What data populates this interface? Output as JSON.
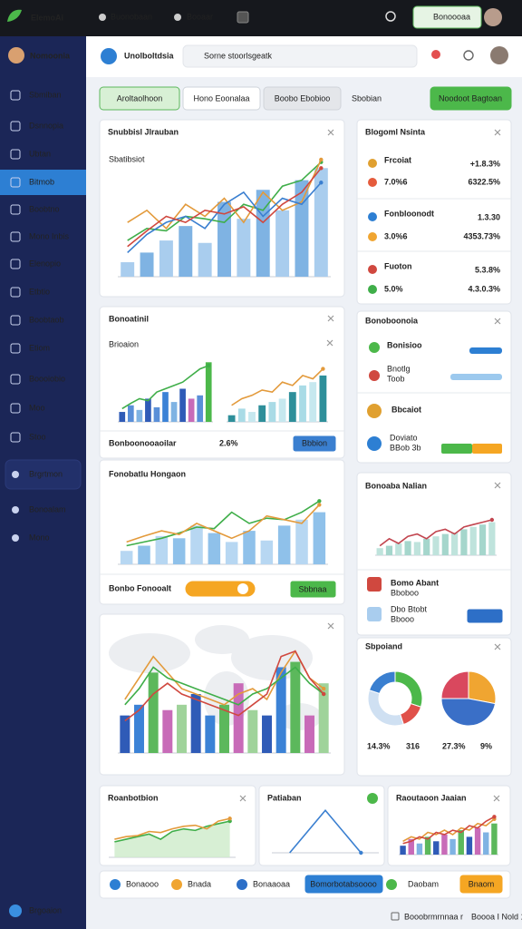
{
  "topbar": {
    "brand": "ElemoAi",
    "nav": [
      "Buonobaan",
      "Booaar"
    ],
    "button": "Bonoooaa"
  },
  "sidebar": {
    "user": "Nomoonia",
    "menu": [
      "Sbmiban",
      "Dsnnopia",
      "Ubtan",
      "Bitmob",
      "Boobtno",
      "Mono Inbis",
      "Elenopio",
      "Etbtio",
      "Boobtaob",
      "Etiom",
      "Boooiobio",
      "Moo",
      "Stoo"
    ],
    "active": 3,
    "menu2": [
      "Brgrtmon",
      "Bonoalam",
      "Mono"
    ],
    "footer": "Brgoaion"
  },
  "header": {
    "title": "Unolboltdsia",
    "search": "Sorne stoorlsgeatk"
  },
  "tabs": [
    "Aroltaolhoon",
    "Hono Eoonalaa",
    "Boobo Ebobioo",
    "Sbobian"
  ],
  "action": "Noodoot Bagtoan",
  "left": [
    {
      "title": "Snubbisl Jlrauban",
      "sub": "Sbatibsiot",
      "chart": {
        "ylim": [
          0,
          100
        ],
        "bars": [
          12,
          20,
          30,
          42,
          28,
          62,
          48,
          72,
          55,
          80,
          90
        ],
        "bar_colors": [
          "#a9cdee",
          "#7fb3e3"
        ],
        "lines": [
          {
            "color": "#3fae49",
            "values": [
              30,
              40,
              38,
              50,
              48,
              45,
              60,
              55,
              75,
              80,
              95
            ]
          },
          {
            "color": "#e39a3b",
            "values": [
              45,
              55,
              40,
              60,
              50,
              65,
              45,
              70,
              55,
              62,
              97
            ]
          },
          {
            "color": "#3a7fd0",
            "values": [
              20,
              35,
              45,
              50,
              40,
              60,
              70,
              50,
              65,
              60,
              78
            ]
          },
          {
            "color": "#d0483f",
            "values": [
              25,
              38,
              50,
              45,
              55,
              52,
              58,
              45,
              60,
              70,
              90
            ]
          }
        ]
      }
    },
    {
      "title": "Bonoatinil",
      "sub": "Brioaion",
      "chart": {
        "ylim": [
          0,
          100
        ],
        "bars": [
          15,
          25,
          18,
          35,
          22,
          45,
          30,
          50,
          35,
          40,
          90
        ],
        "bar_colors": [
          "#2f5bb7",
          "#5a8fd8",
          "#7fb3e3",
          "#2f5bb7",
          "#5a8fd8",
          "#3b82d6",
          "#7fb3e3",
          "#2f5bb7",
          "#c86bb8",
          "#5a8fd8",
          "#4cb84a"
        ],
        "lines": [
          {
            "color": "#3fae49",
            "values": [
              20,
              28,
              35,
              32,
              45,
              50,
              55,
              60,
              70,
              80,
              85
            ]
          }
        ]
      },
      "chart2": {
        "ylim": [
          0,
          100
        ],
        "bars": [
          10,
          20,
          15,
          25,
          30,
          35,
          45,
          55,
          60,
          70
        ],
        "bar_colors": [
          "#2e8f9a",
          "#a9dbe6",
          "#c6e8ef"
        ],
        "lines": [
          {
            "color": "#e39a3b",
            "values": [
              25,
              35,
              40,
              48,
              45,
              60,
              55,
              70,
              65,
              80
            ]
          }
        ]
      },
      "footer": "Bonboonooaoilar",
      "stat": "2.6%",
      "button": "Bbbion"
    },
    {
      "title": "Fonobatlu Hongaon",
      "chart": {
        "ylim": [
          0,
          100
        ],
        "bars": [
          18,
          25,
          38,
          35,
          52,
          42,
          30,
          45,
          32,
          52,
          60,
          70
        ],
        "bar_colors": [
          "#b7d7f2",
          "#8fc1ea"
        ],
        "lines": [
          {
            "color": "#3fae49",
            "values": [
              25,
              30,
              35,
              42,
              50,
              48,
              70,
              55,
              62,
              60,
              70,
              85
            ]
          },
          {
            "color": "#e39a3b",
            "values": [
              30,
              38,
              45,
              40,
              55,
              45,
              35,
              45,
              65,
              60,
              55,
              80
            ]
          }
        ]
      },
      "footer": "Bonbo Fonooalt",
      "button": "Sbbnaa"
    },
    {
      "chart": {
        "ylim": [
          0,
          110
        ],
        "bars": [
          35,
          45,
          75,
          40,
          45,
          55,
          35,
          45,
          65,
          40,
          35,
          80,
          85,
          35,
          65
        ],
        "bar_colors": [
          "#2f5bb7",
          "#3b82d6",
          "#5cb85c",
          "#c86bb8",
          "#9fd39a"
        ],
        "lines": [
          {
            "color": "#e39a3b",
            "values": [
              50,
              70,
              90,
              75,
              60,
              55,
              50,
              45,
              55,
              60,
              50,
              75,
              95,
              70,
              60
            ]
          },
          {
            "color": "#3fae49",
            "values": [
              45,
              60,
              80,
              70,
              65,
              60,
              55,
              50,
              45,
              55,
              60,
              70,
              80,
              65,
              55
            ]
          },
          {
            "color": "#d0483f",
            "values": [
              30,
              40,
              55,
              65,
              55,
              50,
              45,
              40,
              35,
              45,
              55,
              90,
              95,
              70,
              55
            ]
          }
        ]
      }
    }
  ],
  "right": [
    {
      "title": "Blogoml Nsinta",
      "rows": [
        [
          "Frcoiat",
          "+1.8.3%",
          "7.0%6",
          "6322.5%"
        ],
        [
          "Fonbloonodt",
          "1.3.30",
          "3.0%6",
          "4353.73%"
        ],
        [
          "Fuoton",
          "5.3.8%",
          "5.0%",
          "4.3.0.3%"
        ]
      ]
    },
    {
      "title": "Bonoboonoia",
      "items": [
        "Bonisioo",
        "Bnotlg",
        "Toob",
        "Bbcaiot",
        "Doviato",
        "BBob 3b"
      ]
    },
    {
      "title": "Bonoaba Nalian",
      "chart": {
        "ylim": [
          0,
          100
        ],
        "bars": [
          15,
          20,
          25,
          30,
          28,
          35,
          40,
          45,
          48,
          55,
          60,
          65,
          70
        ],
        "bar_colors": [
          "#bfe3dc",
          "#a5d6cc"
        ],
        "lines": [
          {
            "color": "#c2454f",
            "values": [
              20,
              35,
              25,
              40,
              45,
              35,
              50,
              55,
              45,
              60,
              65,
              70,
              75
            ]
          }
        ]
      },
      "items": [
        "Bomo Abant",
        "Bboboo",
        "Dbo Btobt",
        "Bbooo"
      ]
    },
    {
      "title": "Sbpoiand",
      "pies": [
        {
          "donut": true,
          "slices": [
            {
              "color": "#4cb84a",
              "value": 30
            },
            {
              "color": "#e0514a",
              "value": 15
            },
            {
              "color": "#cfe0f2",
              "value": 35
            },
            {
              "color": "#3a7fd0",
              "value": 20
            }
          ],
          "labels": [
            "14.3%",
            "316"
          ]
        },
        {
          "donut": false,
          "slices": [
            {
              "color": "#f0a531",
              "value": 28
            },
            {
              "color": "#3a6fc7",
              "value": 47
            },
            {
              "color": "#d9485e",
              "value": 25
            }
          ],
          "labels": [
            "27.3%",
            "9%"
          ]
        }
      ]
    }
  ],
  "bottom": [
    {
      "title": "Roanbotbion",
      "chart": {
        "ylim": [
          0,
          100
        ],
        "lines": [
          {
            "color": "#3fae49",
            "fill": "#cdebc9",
            "values": [
              30,
              35,
              40,
              45,
              35,
              50,
              55,
              52,
              60,
              65,
              70
            ]
          },
          {
            "color": "#e39a3b",
            "values": [
              35,
              40,
              42,
              50,
              48,
              55,
              60,
              62,
              55,
              70,
              75
            ]
          }
        ]
      }
    },
    {
      "title": "Patiaban",
      "chart": {
        "ylim": [
          0,
          100
        ],
        "lines": [
          {
            "color": "#3a7fd0",
            "values": [
              0,
              90,
              0
            ]
          }
        ]
      }
    },
    {
      "title": "Raoutaoon Jaaian",
      "chart": {
        "ylim": [
          0,
          100
        ],
        "bars": [
          20,
          35,
          25,
          40,
          30,
          45,
          35,
          55,
          40,
          60,
          50,
          70
        ],
        "bar_colors": [
          "#2f5bb7",
          "#c86bb8",
          "#7fb3e3",
          "#5cb85c"
        ],
        "lines": [
          {
            "color": "#e39a3b",
            "values": [
              30,
              40,
              35,
              50,
              45,
              55,
              45,
              60,
              55,
              70,
              65,
              80
            ]
          },
          {
            "color": "#d0483f",
            "values": [
              25,
              30,
              40,
              35,
              50,
              45,
              55,
              50,
              65,
              60,
              75,
              85
            ]
          }
        ]
      }
    }
  ],
  "footbar": [
    "Bonaooo",
    "Bnada",
    "Bonaaoaa",
    "Bomorbotabsoooo",
    "Daobam",
    "Bnaom"
  ],
  "status": [
    "Booobrmrnnaa r",
    "Boooa I Nold 1"
  ]
}
